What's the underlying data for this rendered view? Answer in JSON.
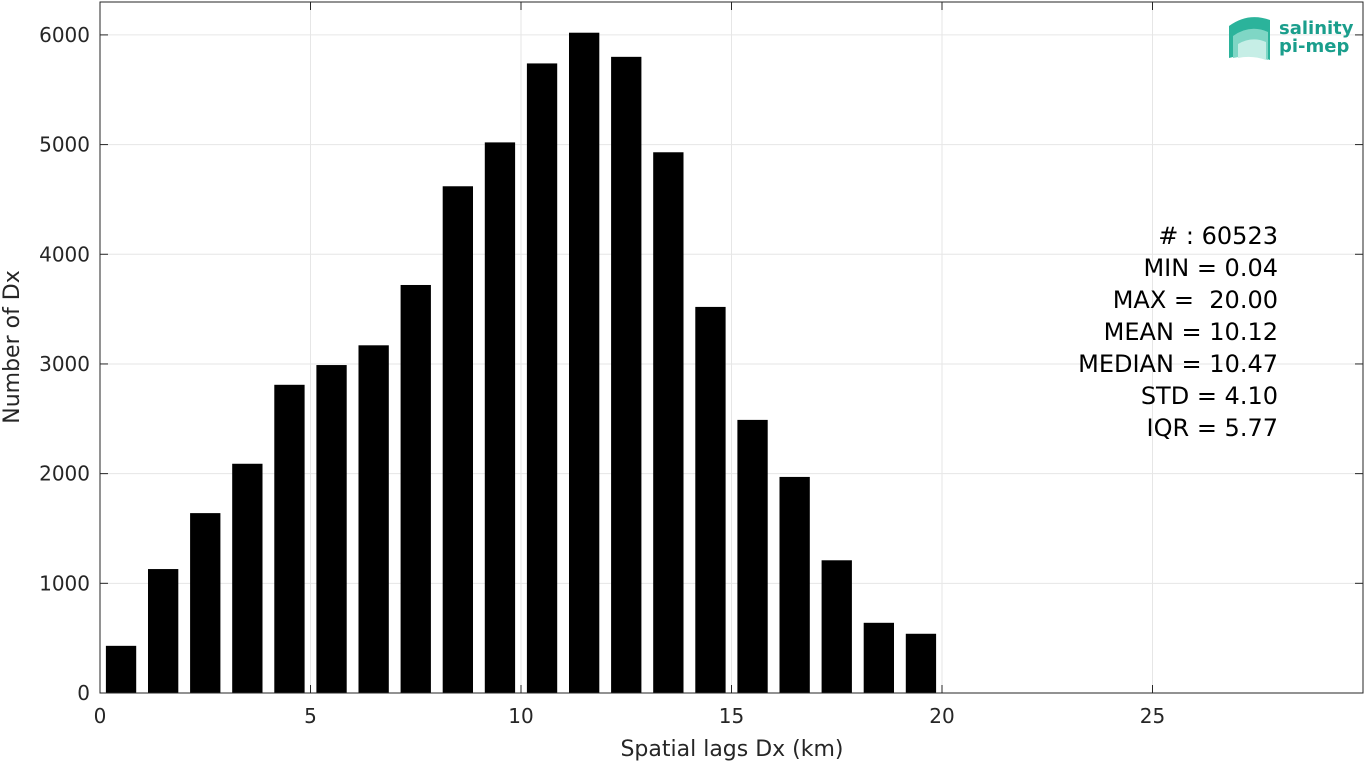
{
  "chart_data": {
    "type": "bar",
    "xlabel": "Spatial lags Dx (km)",
    "ylabel": "Number of Dx",
    "xlim": [
      0,
      30
    ],
    "ylim": [
      0,
      6300
    ],
    "xticks": [
      0,
      5,
      10,
      15,
      20,
      25
    ],
    "yticks": [
      0,
      1000,
      2000,
      3000,
      4000,
      5000,
      6000
    ],
    "grid": true,
    "bin_width": 1,
    "x": [
      0.5,
      1.5,
      2.5,
      3.5,
      4.5,
      5.5,
      6.5,
      7.5,
      8.5,
      9.5,
      10.5,
      11.5,
      12.5,
      13.5,
      14.5,
      15.5,
      16.5,
      17.5,
      18.5,
      19.5
    ],
    "values": [
      430,
      1130,
      1640,
      2090,
      2810,
      2990,
      3170,
      3720,
      4620,
      5020,
      5740,
      6020,
      5800,
      4930,
      3520,
      2490,
      1970,
      1210,
      640,
      540
    ],
    "colors": {
      "bar": "#000000",
      "grid": "#e6e6e6",
      "axis": "#262626",
      "logo": "#1a9e8c"
    },
    "annotations": [
      "# : 60523",
      "MIN = 0.04",
      "MAX =  20.00",
      "MEAN = 10.12",
      "MEDIAN = 10.47",
      "STD = 4.10",
      "IQR = 5.77"
    ]
  },
  "logo": {
    "line1": "salinity",
    "line2": "pi-mep",
    "icon": "wave-icon"
  }
}
